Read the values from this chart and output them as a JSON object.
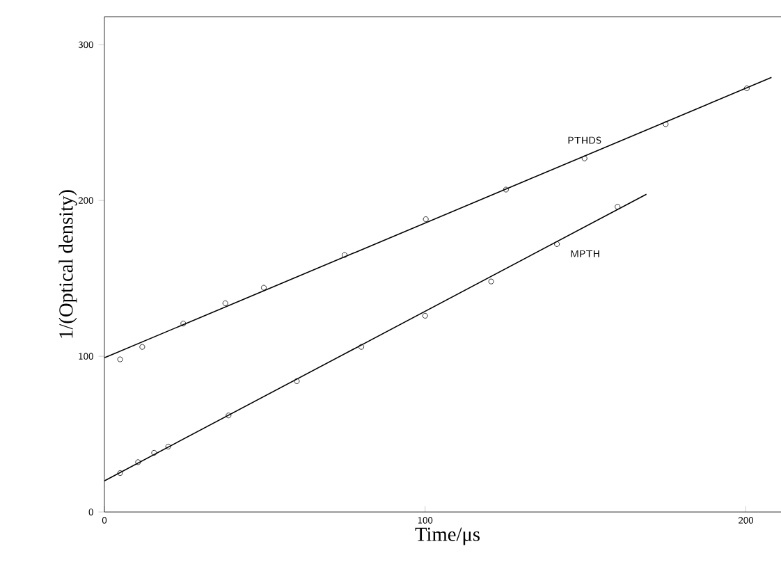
{
  "chart_data": {
    "type": "scatter",
    "xlabel": "Time/μs",
    "ylabel": "1/(Optical density)",
    "xlim": [
      0,
      214
    ],
    "ylim": [
      0,
      318
    ],
    "xticks": [
      0,
      100,
      200
    ],
    "yticks": [
      0,
      100,
      200,
      300
    ],
    "grid": false,
    "marker": "circle",
    "series": [
      {
        "name": "PTHDS",
        "color": "#000000",
        "x": [
          4.9,
          11.8,
          24.6,
          37.7,
          49.7,
          74.9,
          100.2,
          125.2,
          149.7,
          175,
          200.3
        ],
        "values": [
          98,
          106,
          121,
          134,
          144,
          165,
          188,
          207,
          227,
          249,
          272
        ]
      },
      {
        "name": "MPTH",
        "color": "#000000",
        "x": [
          4.9,
          10.5,
          15.5,
          19.9,
          38.7,
          60,
          80.1,
          100,
          120.6,
          141.1,
          160
        ],
        "values": [
          25,
          32,
          38,
          42,
          62,
          84,
          106,
          126,
          148,
          172,
          196
        ]
      },
      {
        "type": "line",
        "color": "#000000",
        "marker": "none",
        "line_style": "solid",
        "x": [
          0,
          208
        ],
        "values": [
          99,
          279
        ]
      },
      {
        "type": "line",
        "color": "#000000",
        "marker": "none",
        "line_style": "solid",
        "x": [
          0,
          169
        ],
        "values": [
          20,
          204
        ]
      }
    ]
  }
}
